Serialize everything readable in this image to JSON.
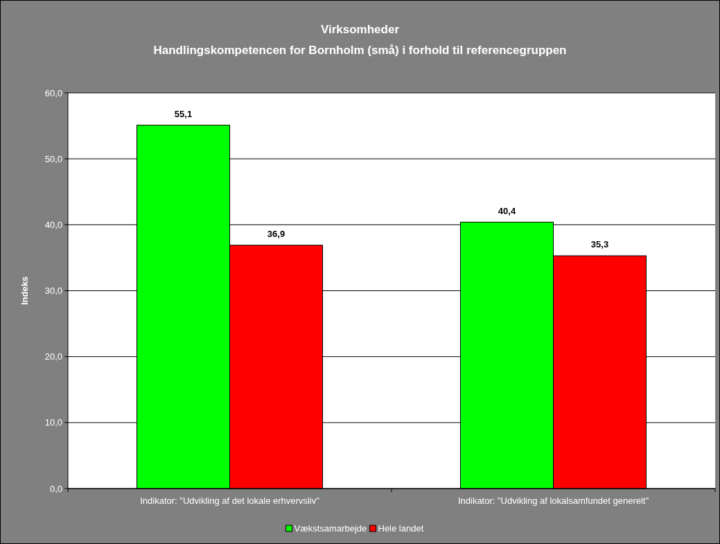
{
  "chart_data": {
    "type": "bar",
    "title": "Virksomheder",
    "subtitle": "Handlingskompetencen for Bornholm (små) i forhold til referencegruppen",
    "ylabel": "Indeks",
    "categories": [
      "Indikator: \"Udvikling af det lokale erhvervsliv\"",
      "Indikator: \"Udvikling af lokalsamfundet generelt\""
    ],
    "series": [
      {
        "name": "Vækstsamarbejde",
        "color": "#00ff00",
        "values": [
          55.1,
          40.4
        ],
        "value_labels": [
          "55,1",
          "40,4"
        ]
      },
      {
        "name": "Hele landet",
        "color": "#ff0000",
        "values": [
          36.9,
          35.3
        ],
        "value_labels": [
          "36,9",
          "35,3"
        ]
      }
    ],
    "ylim": [
      0,
      60
    ],
    "yticks": [
      {
        "value": 0,
        "label": "0,0"
      },
      {
        "value": 10,
        "label": "10,0"
      },
      {
        "value": 20,
        "label": "20,0"
      },
      {
        "value": 30,
        "label": "30,0"
      },
      {
        "value": 40,
        "label": "40,0"
      },
      {
        "value": 50,
        "label": "50,0"
      },
      {
        "value": 60,
        "label": "60,0"
      }
    ],
    "grid": "y",
    "legend": "bottom"
  }
}
